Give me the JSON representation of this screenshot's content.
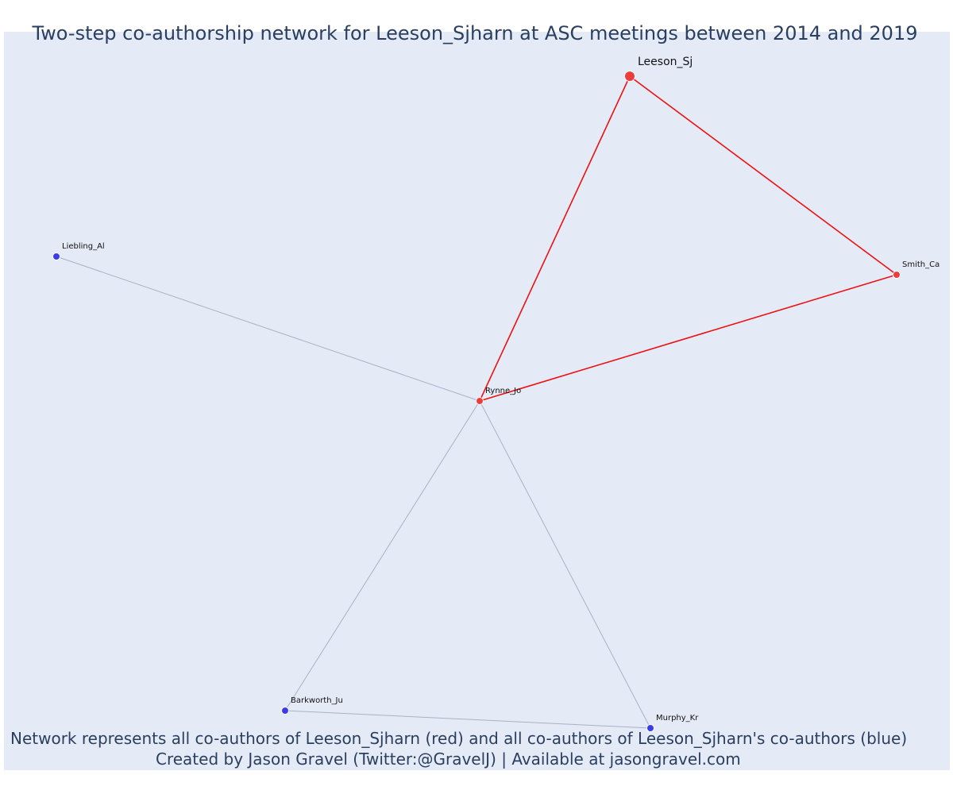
{
  "title": "Two-step co-authorship network for Leeson_Sjharn at ASC meetings between 2014 and 2019",
  "caption_line1": "Network represents all co-authors of Leeson_Sjharn (red) and all co-authors of Leeson_Sjharn's co-authors (blue)",
  "caption_line2": "Created by Jason Gravel (Twitter:@GravelJ) | Available at jasongravel.com",
  "colors": {
    "ego": "#ee3b3b",
    "first_step": "#ee3b3b",
    "second_step": "#3b3bee",
    "ego_edge": "#ee1111",
    "other_edge": "#aab0c8",
    "background": "#e5ebf6"
  },
  "nodes": [
    {
      "id": "leeson",
      "label": "Leeson_Sj",
      "group": "ego"
    },
    {
      "id": "smith",
      "label": "Smith_Ca",
      "group": "first_step"
    },
    {
      "id": "rynne",
      "label": "Rynne_Jo",
      "group": "first_step"
    },
    {
      "id": "liebling",
      "label": "Liebling_Al",
      "group": "second_step"
    },
    {
      "id": "barkworth",
      "label": "Barkworth_Ju",
      "group": "second_step"
    },
    {
      "id": "murphy",
      "label": "Murphy_Kr",
      "group": "second_step"
    }
  ],
  "edges": [
    {
      "source": "leeson",
      "target": "rynne",
      "type": "ego"
    },
    {
      "source": "leeson",
      "target": "smith",
      "type": "ego"
    },
    {
      "source": "rynne",
      "target": "smith",
      "type": "ego"
    },
    {
      "source": "rynne",
      "target": "liebling",
      "type": "other"
    },
    {
      "source": "rynne",
      "target": "barkworth",
      "type": "other"
    },
    {
      "source": "rynne",
      "target": "murphy",
      "type": "other"
    },
    {
      "source": "barkworth",
      "target": "murphy",
      "type": "other"
    }
  ]
}
